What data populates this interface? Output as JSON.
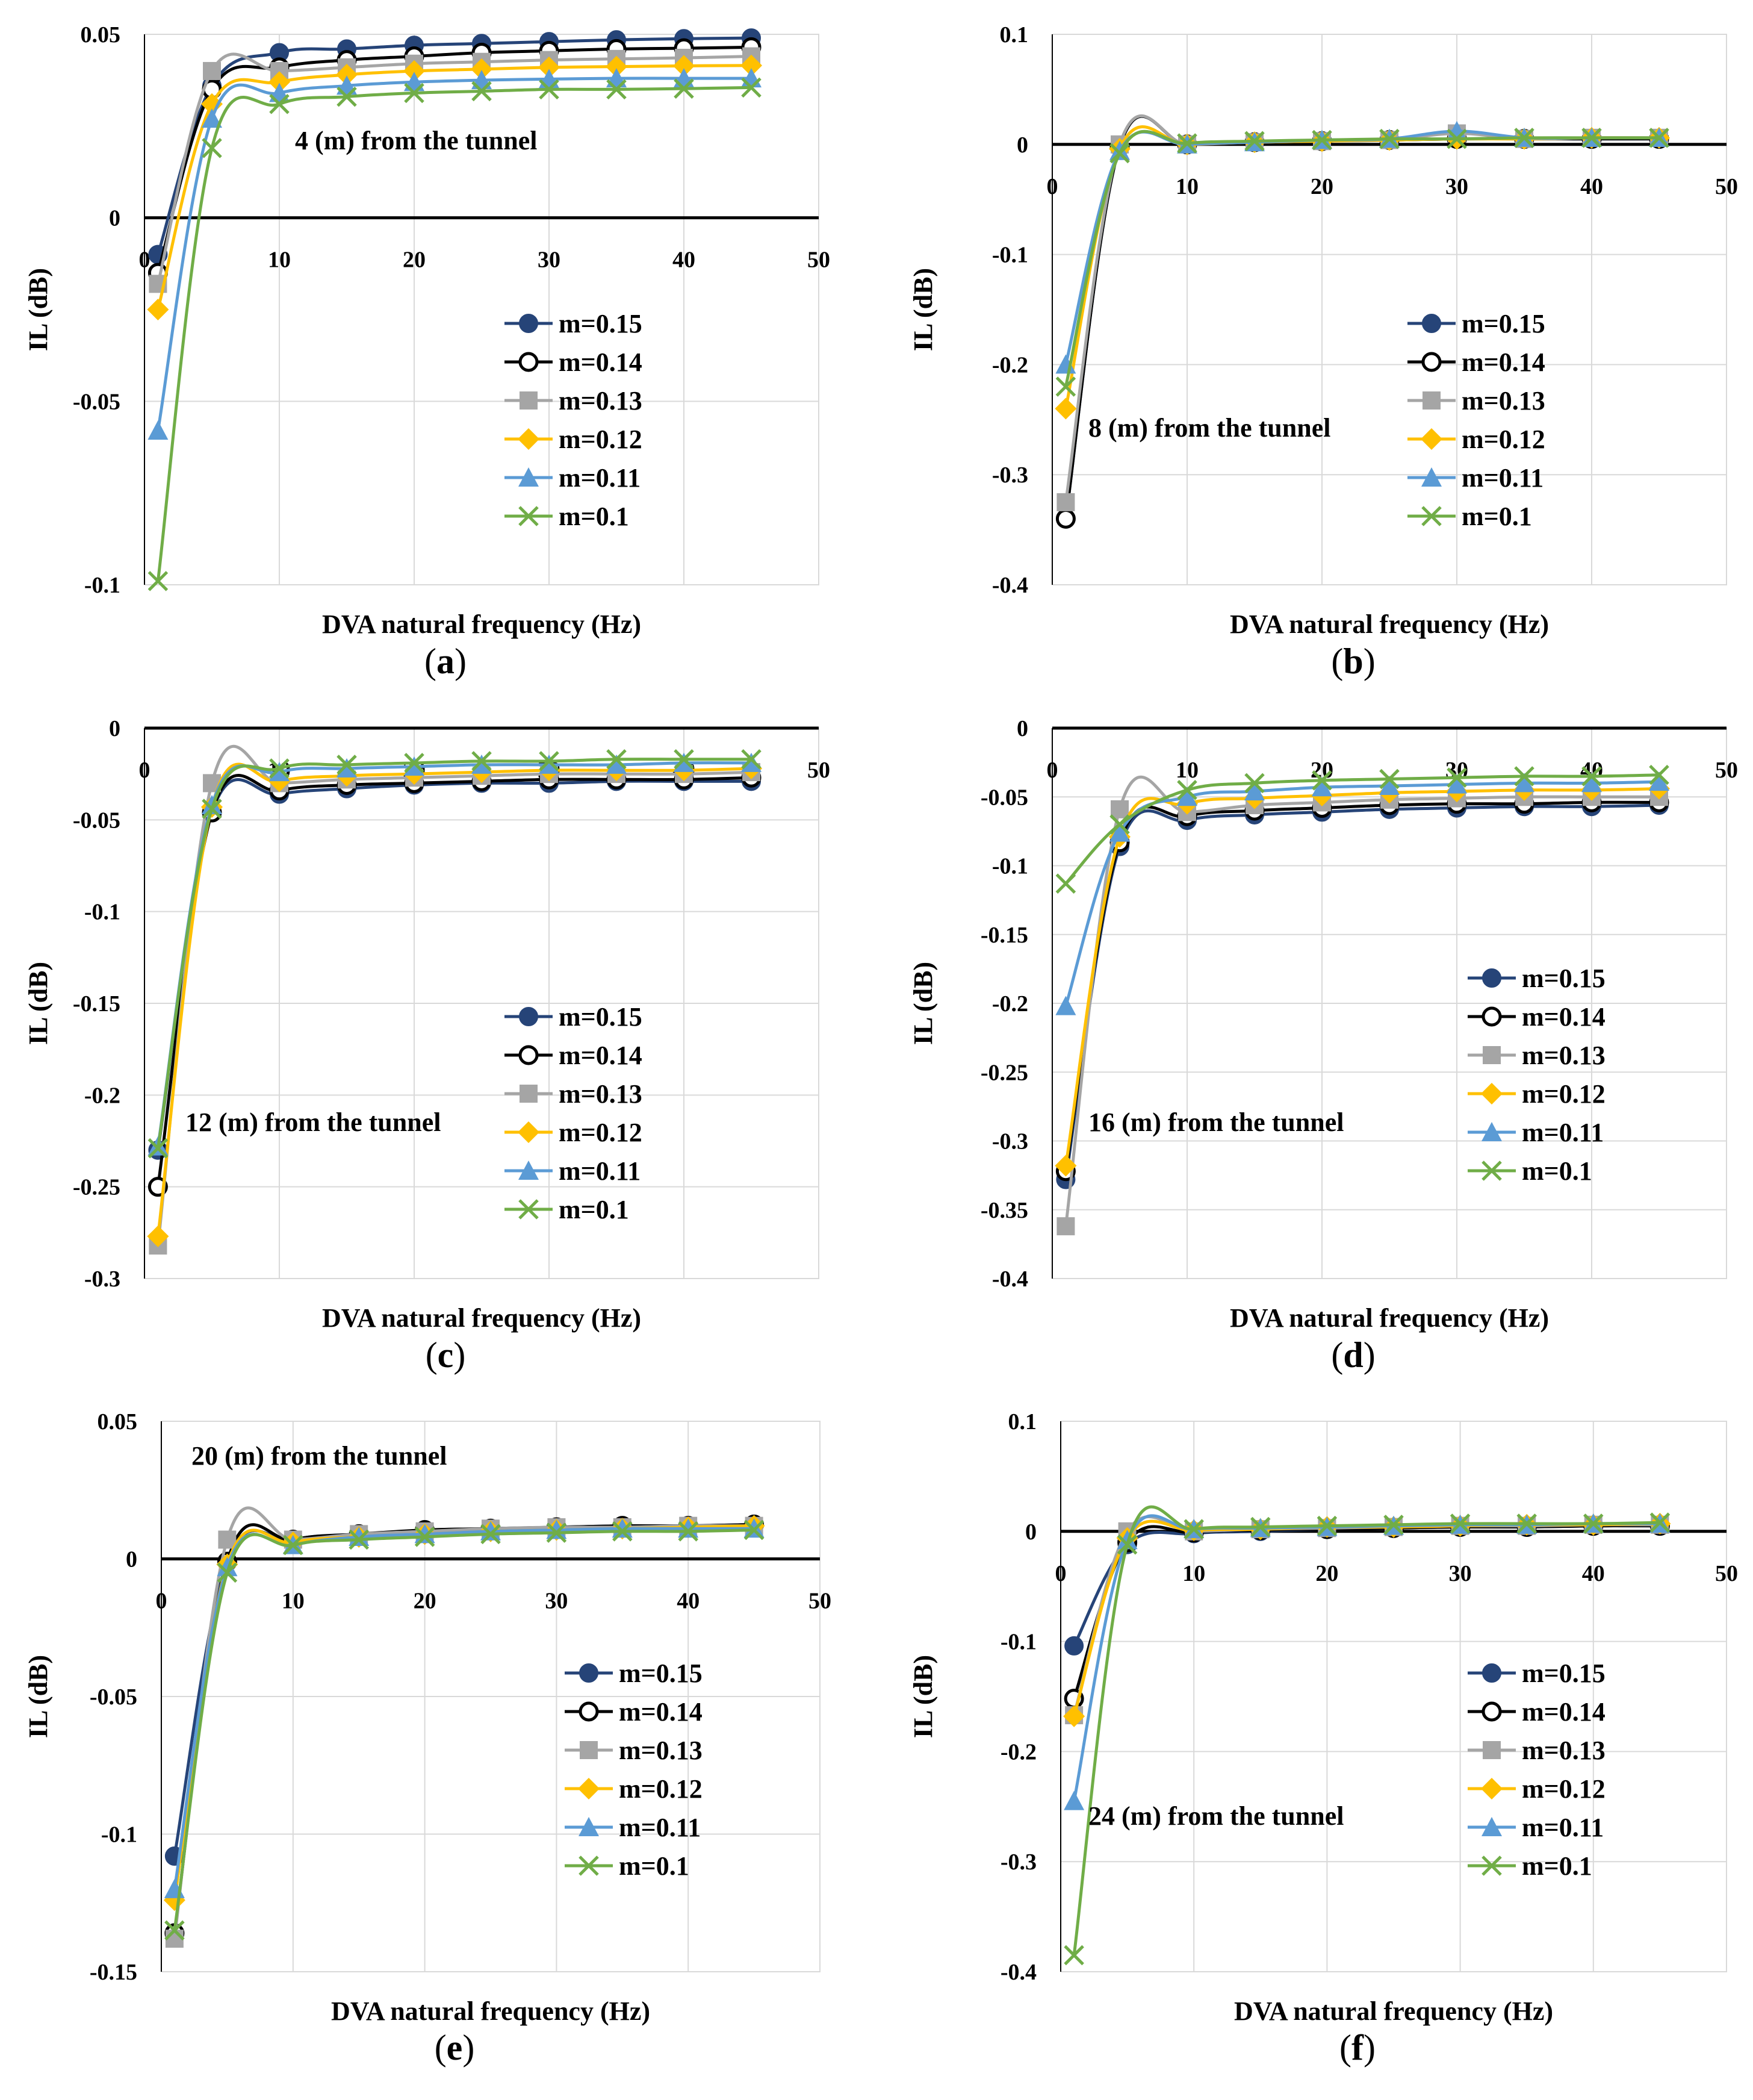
{
  "figure": {
    "x_label": "DVA natural frequency (Hz)",
    "y_label": "IL (dB)",
    "legend_entries": [
      "m=0.15",
      "m=0.14",
      "m=0.13",
      "m=0.12",
      "m=0.11",
      "m=0.1"
    ],
    "series_styles": [
      {
        "name": "m=0.15",
        "color": "#264478",
        "marker": "circle-filled"
      },
      {
        "name": "m=0.14",
        "color": "#000000",
        "marker": "circle-open"
      },
      {
        "name": "m=0.13",
        "color": "#a5a5a5",
        "marker": "square"
      },
      {
        "name": "m=0.12",
        "color": "#ffc000",
        "marker": "diamond"
      },
      {
        "name": "m=0.11",
        "color": "#5b9bd5",
        "marker": "triangle"
      },
      {
        "name": "m=0.1",
        "color": "#70ad47",
        "marker": "x"
      }
    ]
  },
  "chart_data": [
    {
      "type": "line",
      "panel_label": "a",
      "title": "",
      "annotation": "4 (m) from the tunnel",
      "xlabel": "DVA natural frequency (Hz)",
      "ylabel": "IL (dB)",
      "xlim": [
        0,
        50
      ],
      "ylim": [
        -0.1,
        0.05
      ],
      "x_ticks": [
        0,
        10,
        20,
        30,
        40,
        50
      ],
      "y_ticks": [
        -0.1,
        -0.05,
        0,
        0.05
      ],
      "x_tick_labels": [
        "0",
        "10",
        "20",
        "30",
        "40",
        "50"
      ],
      "y_tick_labels": [
        "-0.1",
        "-0.05",
        "0",
        "0.05"
      ],
      "x": [
        1,
        5,
        10,
        15,
        20,
        25,
        30,
        35,
        40,
        45
      ],
      "series": [
        {
          "name": "m=0.15",
          "values": [
            -0.01,
            0.036,
            0.045,
            0.046,
            0.047,
            0.0475,
            0.048,
            0.0485,
            0.0488,
            0.049
          ]
        },
        {
          "name": "m=0.14",
          "values": [
            -0.015,
            0.035,
            0.041,
            0.043,
            0.044,
            0.045,
            0.0455,
            0.046,
            0.0462,
            0.0465
          ]
        },
        {
          "name": "m=0.13",
          "values": [
            -0.018,
            0.04,
            0.04,
            0.041,
            0.042,
            0.0425,
            0.043,
            0.0433,
            0.0436,
            0.044
          ]
        },
        {
          "name": "m=0.12",
          "values": [
            -0.025,
            0.031,
            0.037,
            0.039,
            0.04,
            0.0405,
            0.041,
            0.0412,
            0.0414,
            0.0415
          ]
        },
        {
          "name": "m=0.11",
          "values": [
            -0.058,
            0.027,
            0.034,
            0.036,
            0.037,
            0.0375,
            0.0378,
            0.038,
            0.038,
            0.038
          ]
        },
        {
          "name": "m=0.1",
          "values": [
            -0.099,
            0.019,
            0.031,
            0.033,
            0.034,
            0.0345,
            0.035,
            0.035,
            0.0352,
            0.0355
          ]
        }
      ]
    },
    {
      "type": "line",
      "panel_label": "b",
      "title": "",
      "annotation": "8 (m) from the tunnel",
      "xlabel": "DVA natural frequency (Hz)",
      "ylabel": "IL (dB)",
      "xlim": [
        0,
        50
      ],
      "ylim": [
        -0.4,
        0.1
      ],
      "x_ticks": [
        0,
        10,
        20,
        30,
        40,
        50
      ],
      "y_ticks": [
        -0.4,
        -0.3,
        -0.2,
        -0.1,
        0,
        0.1
      ],
      "x_tick_labels": [
        "0",
        "10",
        "20",
        "30",
        "40",
        "50"
      ],
      "y_tick_labels": [
        "-0.4",
        "-0.3",
        "-0.2",
        "-0.1",
        "0",
        "0.1"
      ],
      "x": [
        1,
        5,
        10,
        15,
        20,
        25,
        30,
        35,
        40,
        45
      ],
      "series": [
        {
          "name": "m=0.15",
          "values": [
            -0.34,
            -0.002,
            0.0,
            0.002,
            0.003,
            0.004,
            0.005,
            0.005,
            0.005,
            0.005
          ]
        },
        {
          "name": "m=0.14",
          "values": [
            -0.34,
            -0.002,
            0.0,
            0.002,
            0.003,
            0.004,
            0.005,
            0.005,
            0.005,
            0.005
          ]
        },
        {
          "name": "m=0.13",
          "values": [
            -0.325,
            0.0,
            0.0,
            0.002,
            0.003,
            0.004,
            0.01,
            0.005,
            0.006,
            0.006
          ]
        },
        {
          "name": "m=0.12",
          "values": [
            -0.24,
            -0.004,
            0.0,
            0.002,
            0.003,
            0.004,
            0.005,
            0.005,
            0.006,
            0.006
          ]
        },
        {
          "name": "m=0.11",
          "values": [
            -0.2,
            -0.006,
            0.0,
            0.002,
            0.004,
            0.005,
            0.012,
            0.006,
            0.006,
            0.006
          ]
        },
        {
          "name": "m=0.1",
          "values": [
            -0.22,
            -0.008,
            0.001,
            0.003,
            0.004,
            0.005,
            0.005,
            0.006,
            0.006,
            0.006
          ]
        }
      ]
    },
    {
      "type": "line",
      "panel_label": "c",
      "title": "",
      "annotation": "12 (m) from the tunnel",
      "xlabel": "DVA natural frequency (Hz)",
      "ylabel": "IL (dB)",
      "xlim": [
        0,
        50
      ],
      "ylim": [
        -0.3,
        0
      ],
      "x_ticks": [
        0,
        10,
        20,
        30,
        40,
        50
      ],
      "y_ticks": [
        -0.3,
        -0.25,
        -0.2,
        -0.15,
        -0.1,
        -0.05,
        0
      ],
      "x_tick_labels": [
        "0",
        "10",
        "20",
        "30",
        "40",
        "50"
      ],
      "y_tick_labels": [
        "-0.3",
        "-0.25",
        "-0.2",
        "-0.15",
        "-0.1",
        "-0.05",
        "0"
      ],
      "x": [
        1,
        5,
        10,
        15,
        20,
        25,
        30,
        35,
        40,
        45
      ],
      "series": [
        {
          "name": "m=0.15",
          "values": [
            -0.23,
            -0.046,
            -0.036,
            -0.033,
            -0.031,
            -0.03,
            -0.03,
            -0.029,
            -0.029,
            -0.029
          ]
        },
        {
          "name": "m=0.14",
          "values": [
            -0.25,
            -0.046,
            -0.034,
            -0.031,
            -0.03,
            -0.029,
            -0.028,
            -0.028,
            -0.028,
            -0.027
          ]
        },
        {
          "name": "m=0.13",
          "values": [
            -0.282,
            -0.03,
            -0.03,
            -0.028,
            -0.027,
            -0.026,
            -0.025,
            -0.025,
            -0.025,
            -0.024
          ]
        },
        {
          "name": "m=0.12",
          "values": [
            -0.277,
            -0.043,
            -0.029,
            -0.026,
            -0.025,
            -0.024,
            -0.023,
            -0.023,
            -0.023,
            -0.022
          ]
        },
        {
          "name": "m=0.11",
          "values": [
            -0.228,
            -0.042,
            -0.024,
            -0.022,
            -0.021,
            -0.02,
            -0.02,
            -0.02,
            -0.019,
            -0.019
          ]
        },
        {
          "name": "m=0.1",
          "values": [
            -0.229,
            -0.044,
            -0.022,
            -0.02,
            -0.019,
            -0.018,
            -0.018,
            -0.017,
            -0.017,
            -0.017
          ]
        }
      ]
    },
    {
      "type": "line",
      "panel_label": "d",
      "title": "",
      "annotation": "16 (m) from the tunnel",
      "xlabel": "DVA natural frequency (Hz)",
      "ylabel": "IL (dB)",
      "xlim": [
        0,
        50
      ],
      "ylim": [
        -0.4,
        0
      ],
      "x_ticks": [
        0,
        10,
        20,
        30,
        40,
        50
      ],
      "y_ticks": [
        -0.4,
        -0.35,
        -0.3,
        -0.25,
        -0.2,
        -0.15,
        -0.1,
        -0.05,
        0
      ],
      "x_tick_labels": [
        "0",
        "10",
        "20",
        "30",
        "40",
        "50"
      ],
      "y_tick_labels": [
        "-0.4",
        "-0.35",
        "-0.3",
        "-0.25",
        "-0.2",
        "-0.15",
        "-0.1",
        "-0.05",
        "0"
      ],
      "x": [
        1,
        5,
        10,
        15,
        20,
        25,
        30,
        35,
        40,
        45
      ],
      "series": [
        {
          "name": "m=0.15",
          "values": [
            -0.328,
            -0.086,
            -0.067,
            -0.063,
            -0.061,
            -0.059,
            -0.058,
            -0.057,
            -0.057,
            -0.056
          ]
        },
        {
          "name": "m=0.14",
          "values": [
            -0.322,
            -0.083,
            -0.064,
            -0.06,
            -0.058,
            -0.056,
            -0.055,
            -0.055,
            -0.054,
            -0.054
          ]
        },
        {
          "name": "m=0.13",
          "values": [
            -0.362,
            -0.059,
            -0.061,
            -0.056,
            -0.054,
            -0.052,
            -0.051,
            -0.05,
            -0.05,
            -0.05
          ]
        },
        {
          "name": "m=0.12",
          "values": [
            -0.318,
            -0.079,
            -0.055,
            -0.051,
            -0.049,
            -0.047,
            -0.046,
            -0.045,
            -0.045,
            -0.044
          ]
        },
        {
          "name": "m=0.11",
          "values": [
            -0.202,
            -0.076,
            -0.05,
            -0.046,
            -0.043,
            -0.042,
            -0.041,
            -0.04,
            -0.04,
            -0.039
          ]
        },
        {
          "name": "m=0.1",
          "values": [
            -0.113,
            -0.07,
            -0.045,
            -0.04,
            -0.038,
            -0.037,
            -0.036,
            -0.035,
            -0.035,
            -0.034
          ]
        }
      ]
    },
    {
      "type": "line",
      "panel_label": "e",
      "title": "",
      "annotation": "20 (m) from the tunnel",
      "xlabel": "DVA natural frequency (Hz)",
      "ylabel": "IL (dB)",
      "xlim": [
        0,
        50
      ],
      "ylim": [
        -0.15,
        0.05
      ],
      "x_ticks": [
        0,
        10,
        20,
        30,
        40,
        50
      ],
      "y_ticks": [
        -0.15,
        -0.1,
        -0.05,
        0,
        0.05
      ],
      "x_tick_labels": [
        "0",
        "10",
        "20",
        "30",
        "40",
        "50"
      ],
      "y_tick_labels": [
        "-0.15",
        "-0.1",
        "-0.05",
        "0",
        "0.05"
      ],
      "x": [
        1,
        5,
        10,
        15,
        20,
        25,
        30,
        35,
        40,
        45
      ],
      "series": [
        {
          "name": "m=0.15",
          "values": [
            -0.108,
            -0.001,
            0.007,
            0.009,
            0.01,
            0.011,
            0.0115,
            0.012,
            0.012,
            0.0125
          ]
        },
        {
          "name": "m=0.14",
          "values": [
            -0.136,
            -0.001,
            0.007,
            0.009,
            0.0105,
            0.011,
            0.0115,
            0.012,
            0.012,
            0.0125
          ]
        },
        {
          "name": "m=0.13",
          "values": [
            -0.138,
            0.007,
            0.007,
            0.009,
            0.01,
            0.011,
            0.0115,
            0.0115,
            0.012,
            0.012
          ]
        },
        {
          "name": "m=0.12",
          "values": [
            -0.124,
            -0.002,
            0.006,
            0.008,
            0.009,
            0.01,
            0.0105,
            0.011,
            0.0115,
            0.012
          ]
        },
        {
          "name": "m=0.11",
          "values": [
            -0.12,
            -0.003,
            0.005,
            0.008,
            0.009,
            0.01,
            0.0105,
            0.011,
            0.011,
            0.011
          ]
        },
        {
          "name": "m=0.1",
          "values": [
            -0.135,
            -0.005,
            0.005,
            0.007,
            0.008,
            0.009,
            0.0095,
            0.01,
            0.01,
            0.0105
          ]
        }
      ]
    },
    {
      "type": "line",
      "panel_label": "f",
      "title": "",
      "annotation": "24 (m) from the tunnel",
      "xlabel": "DVA natural frequency (Hz)",
      "ylabel": "IL (dB)",
      "xlim": [
        0,
        50
      ],
      "ylim": [
        -0.4,
        0.1
      ],
      "x_ticks": [
        0,
        10,
        20,
        30,
        40,
        50
      ],
      "y_ticks": [
        -0.4,
        -0.3,
        -0.2,
        -0.1,
        0,
        0.1
      ],
      "x_tick_labels": [
        "0",
        "10",
        "20",
        "30",
        "40",
        "50"
      ],
      "y_tick_labels": [
        "-0.4",
        "-0.3",
        "-0.2",
        "-0.1",
        "0",
        "0.1"
      ],
      "x": [
        1,
        5,
        10,
        15,
        20,
        25,
        30,
        35,
        40,
        45
      ],
      "series": [
        {
          "name": "m=0.15",
          "values": [
            -0.104,
            -0.012,
            -0.002,
            0.0,
            0.002,
            0.003,
            0.004,
            0.004,
            0.005,
            0.005
          ]
        },
        {
          "name": "m=0.14",
          "values": [
            -0.152,
            -0.01,
            -0.001,
            0.001,
            0.002,
            0.003,
            0.004,
            0.004,
            0.005,
            0.005
          ]
        },
        {
          "name": "m=0.13",
          "values": [
            -0.167,
            0.0,
            0.0,
            0.002,
            0.003,
            0.004,
            0.005,
            0.005,
            0.006,
            0.006
          ]
        },
        {
          "name": "m=0.12",
          "values": [
            -0.168,
            -0.006,
            0.001,
            0.002,
            0.004,
            0.004,
            0.005,
            0.006,
            0.006,
            0.007
          ]
        },
        {
          "name": "m=0.11",
          "values": [
            -0.245,
            -0.008,
            0.002,
            0.003,
            0.004,
            0.005,
            0.006,
            0.006,
            0.007,
            0.007
          ]
        },
        {
          "name": "m=0.1",
          "values": [
            -0.385,
            -0.012,
            0.002,
            0.004,
            0.005,
            0.006,
            0.007,
            0.007,
            0.007,
            0.008
          ]
        }
      ]
    }
  ]
}
